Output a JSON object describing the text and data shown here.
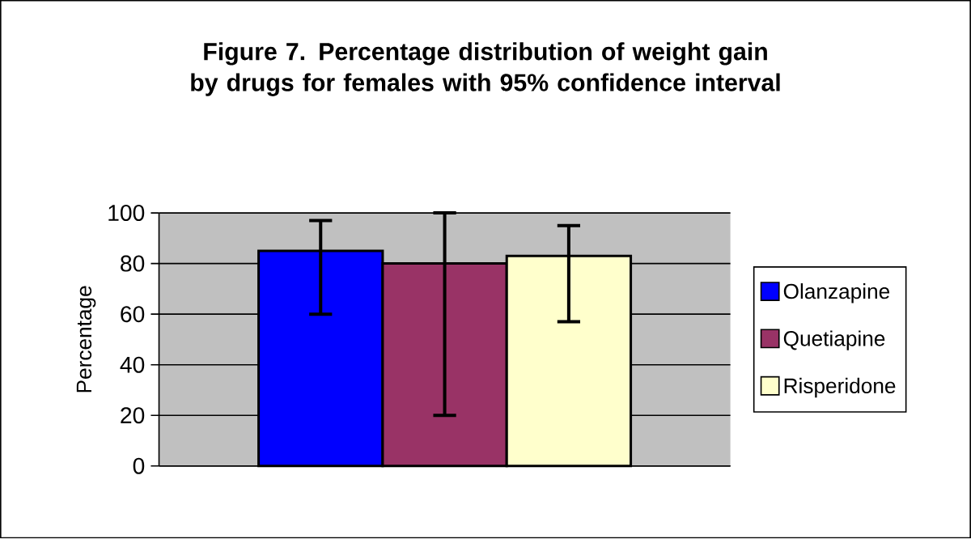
{
  "chart_data": {
    "type": "bar",
    "title": "Figure 7. Percentage distribution of weight gain by drugs for females with 95% confidence interval",
    "ylabel": "Percentage",
    "categories": [
      null
    ],
    "tick_labels": "y",
    "ylim": [
      0,
      100
    ],
    "yticks": [
      0,
      20,
      40,
      60,
      80,
      100
    ],
    "grid": "y",
    "legend": "right",
    "series": [
      {
        "name": "Olanzapine",
        "color": "#0000ff",
        "values": [
          85
        ],
        "errors": [
          [
            60,
            97
          ]
        ]
      },
      {
        "name": "Quetiapine",
        "color": "#993366",
        "values": [
          80
        ],
        "errors": [
          [
            20,
            100
          ]
        ]
      },
      {
        "name": "Risperidone",
        "color": "#ffffcc",
        "values": [
          83
        ],
        "errors": [
          [
            57,
            95
          ]
        ]
      }
    ]
  }
}
